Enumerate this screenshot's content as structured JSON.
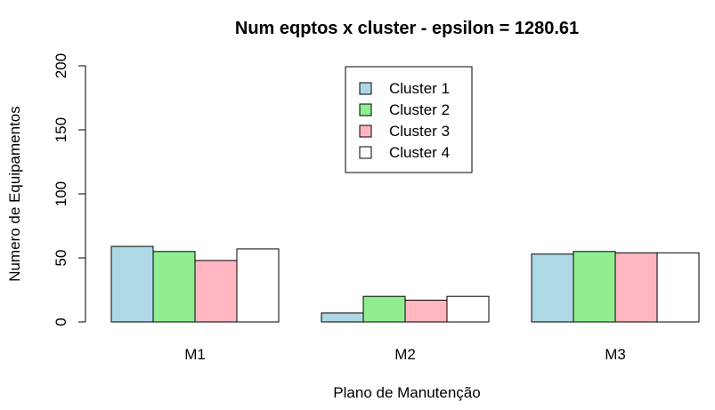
{
  "chart_data": {
    "type": "bar",
    "title": "Num eqptos x cluster - epsilon =  1280.61",
    "xlabel": "Plano de Manutenção",
    "ylabel": "Numero de Equipamentos",
    "categories": [
      "M1",
      "M2",
      "M3"
    ],
    "ylim": [
      0,
      200
    ],
    "yticks": [
      0,
      50,
      100,
      150,
      200
    ],
    "grid": false,
    "legend_position": "top-center",
    "series": [
      {
        "name": "Cluster 1",
        "color": "#add8e6",
        "values": [
          59,
          7,
          53
        ]
      },
      {
        "name": "Cluster 2",
        "color": "#90ee90",
        "values": [
          55,
          20,
          55
        ]
      },
      {
        "name": "Cluster 3",
        "color": "#ffb6c1",
        "values": [
          48,
          17,
          54
        ]
      },
      {
        "name": "Cluster 4",
        "color": "#ffffff",
        "values": [
          57,
          20,
          54
        ]
      }
    ]
  }
}
